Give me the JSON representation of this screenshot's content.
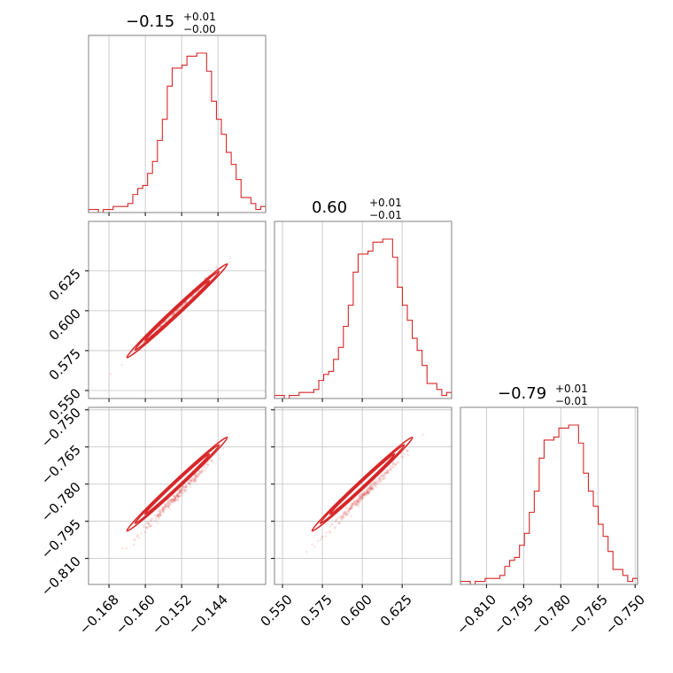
{
  "chart_data": {
    "type": "corner",
    "color": "#d62728",
    "parameters": [
      {
        "title": {
          "value": "−0.15",
          "plus": "+0.01",
          "minus": "−0.00"
        },
        "range": [
          -0.1725,
          -0.1335
        ],
        "ticks": [
          -0.168,
          -0.16,
          -0.152,
          -0.144
        ],
        "tick_labels": [
          "−0.168",
          "−0.160",
          "−0.152",
          "−0.144"
        ],
        "hist_counts": [
          1,
          1,
          0,
          1,
          1,
          2,
          2,
          2,
          3,
          6,
          8,
          9,
          13,
          17,
          24,
          31,
          42,
          48,
          48,
          49,
          52,
          52,
          53,
          53,
          47,
          37,
          31,
          26,
          20,
          16,
          11,
          5,
          5,
          3,
          1,
          2
        ]
      },
      {
        "title": {
          "value": "0.60",
          "plus": "+0.01",
          "minus": "−0.01"
        },
        "range": [
          0.545,
          0.656
        ],
        "ticks": [
          0.55,
          0.575,
          0.6,
          0.625
        ],
        "tick_labels": [
          "0.550",
          "0.575",
          "0.600",
          "0.625"
        ],
        "hist_counts": [
          1,
          1,
          0,
          1,
          1,
          2,
          2,
          2,
          3,
          6,
          8,
          9,
          13,
          17,
          24,
          31,
          42,
          48,
          48,
          49,
          52,
          52,
          53,
          53,
          47,
          37,
          31,
          26,
          20,
          16,
          11,
          5,
          5,
          3,
          1,
          2
        ]
      },
      {
        "title": {
          "value": "−0.79",
          "plus": "+0.01",
          "minus": "−0.01"
        },
        "range": [
          -0.8205,
          -0.749
        ],
        "ticks": [
          -0.81,
          -0.795,
          -0.78,
          -0.765,
          -0.75
        ],
        "tick_labels": [
          "−0.810",
          "−0.795",
          "−0.780",
          "−0.765",
          "−0.750"
        ],
        "hist_counts": [
          1,
          1,
          0,
          1,
          1,
          2,
          2,
          2,
          3,
          6,
          8,
          9,
          13,
          17,
          24,
          31,
          42,
          48,
          48,
          49,
          52,
          52,
          53,
          53,
          47,
          37,
          31,
          26,
          20,
          16,
          11,
          5,
          5,
          3,
          1,
          2
        ]
      }
    ],
    "pairs": [
      {
        "x": 0,
        "y": 1,
        "slope": 0.98,
        "intercept": 0.0,
        "center": [
          -0.153,
          0.6
        ]
      },
      {
        "x": 0,
        "y": 2,
        "slope": 0.98,
        "intercept": 0.0,
        "center": [
          -0.153,
          -0.78
        ]
      },
      {
        "x": 1,
        "y": 2,
        "slope": 1.0,
        "intercept": 0.0,
        "center": [
          0.6,
          -0.78
        ]
      }
    ],
    "grid": true
  }
}
